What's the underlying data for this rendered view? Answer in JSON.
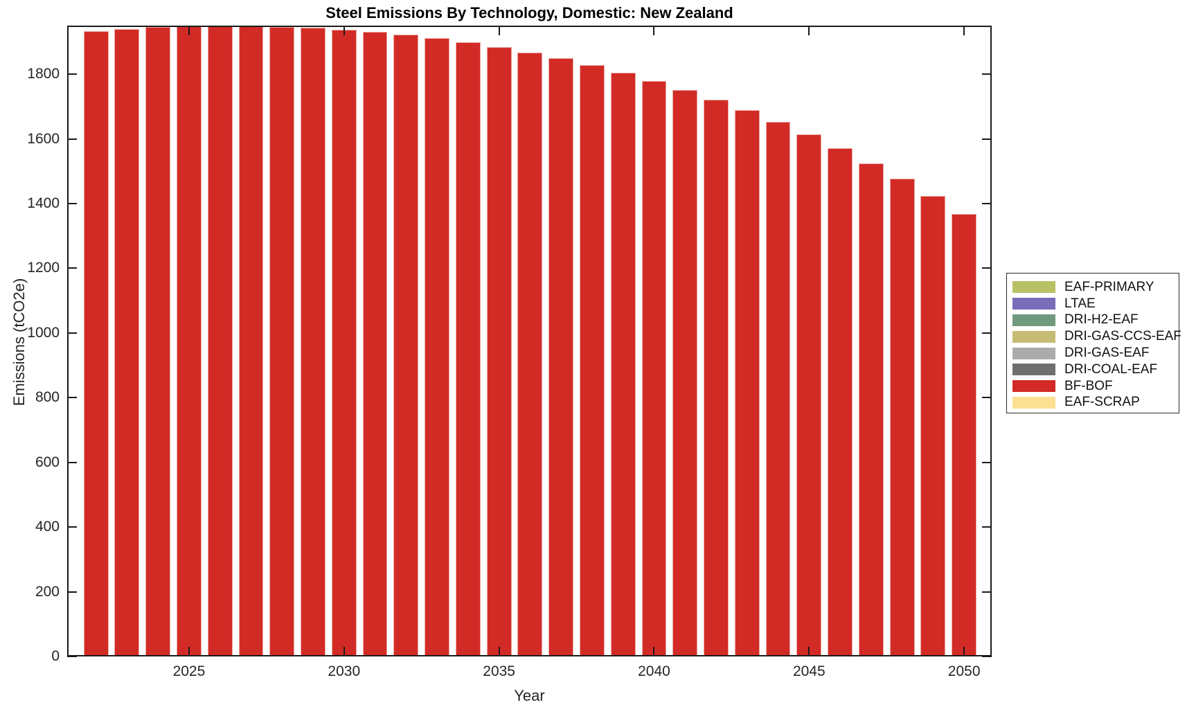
{
  "figure": {
    "title": "Steel Emissions By Technology, Domestic: New Zealand",
    "xlabel": "Year",
    "ylabel": "Emissions (tCO2e)"
  },
  "chart_data": {
    "type": "bar",
    "title": "Steel Emissions By Technology, Domestic: New Zealand",
    "xlabel": "Year",
    "ylabel": "Emissions (tCO2e)",
    "x": [
      2022,
      2023,
      2024,
      2025,
      2026,
      2027,
      2028,
      2029,
      2030,
      2031,
      2032,
      2033,
      2034,
      2035,
      2036,
      2037,
      2038,
      2039,
      2040,
      2041,
      2042,
      2043,
      2044,
      2045,
      2046,
      2047,
      2048,
      2049,
      2050
    ],
    "series": [
      {
        "name": "BF-BOF",
        "color": "#D22B26",
        "values": [
          1932,
          1940,
          1945,
          1948,
          1949,
          1948,
          1946,
          1943,
          1938,
          1931,
          1922,
          1911,
          1899,
          1884,
          1867,
          1849,
          1828,
          1805,
          1779,
          1751,
          1721,
          1688,
          1652,
          1613,
          1571,
          1525,
          1476,
          1423,
          1367
        ]
      }
    ],
    "bar_width_data_units": 0.8,
    "xlim": [
      2021.07,
      2050.89
    ],
    "ylim": [
      0,
      1950
    ],
    "xticks": [
      2025,
      2030,
      2035,
      2040,
      2045,
      2050
    ],
    "yticks": [
      0,
      200,
      400,
      600,
      800,
      1000,
      1200,
      1400,
      1600,
      1800
    ],
    "grid": false,
    "legend": {
      "position": "right-outside",
      "entries": [
        {
          "label": "EAF-PRIMARY",
          "color": "#B9C167"
        },
        {
          "label": "LTAE",
          "color": "#7A6CB8"
        },
        {
          "label": "DRI-H2-EAF",
          "color": "#6F9A7D"
        },
        {
          "label": "DRI-GAS-CCS-EAF",
          "color": "#C7BC73"
        },
        {
          "label": "DRI-GAS-EAF",
          "color": "#ABABAB"
        },
        {
          "label": "DRI-COAL-EAF",
          "color": "#6F6F6F"
        },
        {
          "label": "BF-BOF",
          "color": "#D22B26"
        },
        {
          "label": "EAF-SCRAP",
          "color": "#FCE091"
        }
      ]
    },
    "axis_color": "#1a1a1a",
    "bar_edge_color": "#ECA8A1"
  }
}
